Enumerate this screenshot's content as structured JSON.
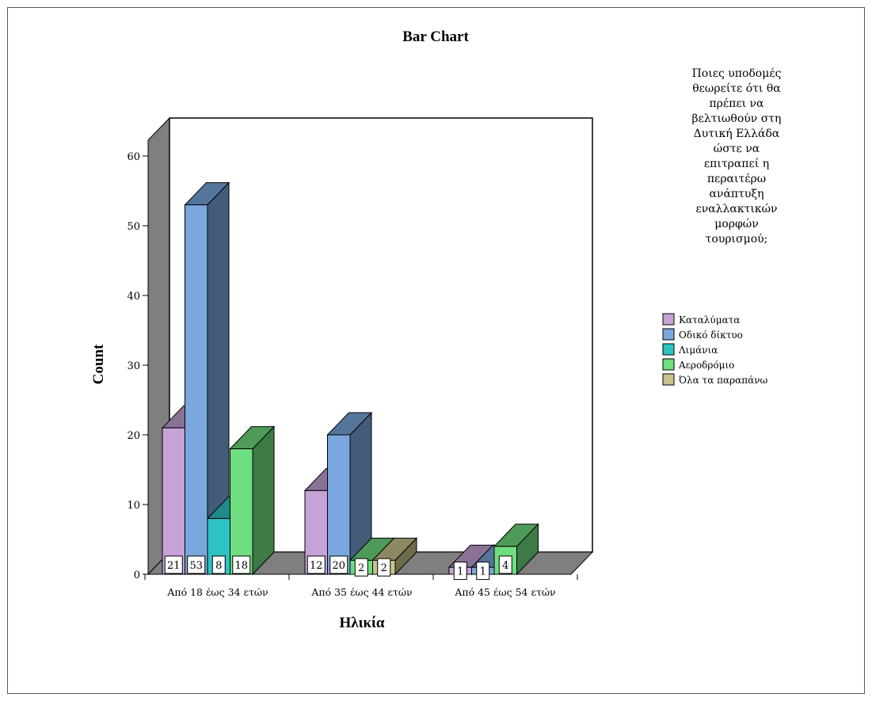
{
  "chart_data": {
    "type": "bar",
    "title": "Bar Chart",
    "xlabel": "Ηλικία",
    "ylabel": "Count",
    "ylim": [
      0,
      60
    ],
    "yticks": [
      0,
      10,
      20,
      30,
      40,
      50,
      60
    ],
    "categories": [
      "Από 18 έως 34 ετών",
      "Από 35 έως 44 ετών",
      "Από 45 έως 54 ετών"
    ],
    "legend": {
      "title_lines": [
        "Ποιες υποδομές",
        "θεωρείτε ότι θα",
        "πρέπει να",
        "βελτιωθούν στη",
        "Δυτική Ελλάδα",
        "ώστε να",
        "επιτραπεί η",
        "περαιτέρω",
        "ανάπτυξη",
        "εναλλακτικών",
        "μορφών",
        "τουρισμού;"
      ],
      "placement": "right"
    },
    "series": [
      {
        "name": "Καταλύματα",
        "color": "#c5a3d6",
        "values": [
          21,
          12,
          1
        ]
      },
      {
        "name": "Οδικό δίκτυο",
        "color": "#7aa8de",
        "values": [
          53,
          20,
          1
        ]
      },
      {
        "name": "Λιμάνια",
        "color": "#2ec3c3",
        "values": [
          8,
          null,
          null
        ]
      },
      {
        "name": "Αεροδρόμιο",
        "color": "#6fde7f",
        "values": [
          18,
          2,
          4
        ]
      },
      {
        "name": "Όλα τα παραπάνω",
        "color": "#c8c38c",
        "values": [
          null,
          2,
          null
        ]
      }
    ]
  }
}
